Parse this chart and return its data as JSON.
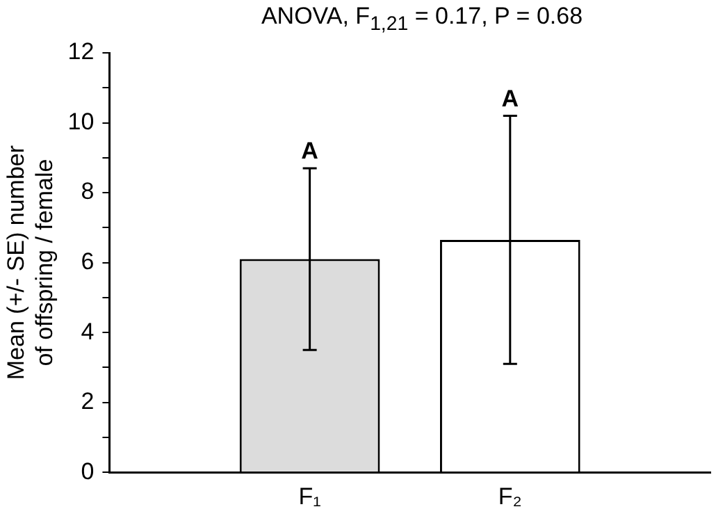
{
  "chart_data": {
    "type": "bar",
    "title": "ANOVA, F$_{1,21}$ = 0.17, P = 0.68",
    "ylabel": "Mean (+/- SE) number of offspring / female",
    "categories": [
      "F₁",
      "F₂"
    ],
    "values": [
      6.1,
      6.65
    ],
    "errors": [
      2.6,
      3.55
    ],
    "colors": [
      "#dcdcdc",
      "#ffffff"
    ],
    "ylim": [
      0,
      12
    ],
    "yticks": [
      0,
      {
        "value": 1,
        "label": null
      },
      2,
      {
        "value": 3,
        "label": null
      },
      4,
      {
        "value": 5,
        "label": null
      },
      6,
      {
        "value": 7,
        "label": null
      },
      8,
      {
        "value": 9,
        "label": null
      },
      10,
      {
        "value": 11,
        "label": null
      },
      12
    ],
    "annotations": [
      {
        "text": "A",
        "x": "F₁",
        "y": 8.7
      },
      {
        "text": "A",
        "x": "F₂",
        "y": 10.2
      }
    ],
    "grid": false,
    "legend": false
  }
}
